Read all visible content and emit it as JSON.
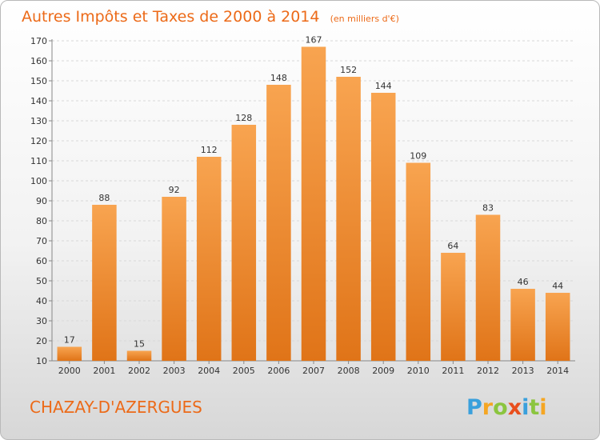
{
  "chart_data": {
    "type": "bar",
    "title": "Autres Impôts et Taxes de 2000 à 2014",
    "subtitle": "(en milliers d'€)",
    "categories": [
      "2000",
      "2001",
      "2002",
      "2003",
      "2004",
      "2005",
      "2006",
      "2007",
      "2008",
      "2009",
      "2010",
      "2011",
      "2012",
      "2013",
      "2014"
    ],
    "values": [
      17,
      88,
      15,
      92,
      112,
      128,
      148,
      167,
      152,
      144,
      109,
      64,
      83,
      46,
      44
    ],
    "value_labels": [
      "17",
      "88",
      "15",
      "92",
      "112",
      "128",
      "148",
      "167",
      "152",
      "144",
      "109",
      "64",
      "83",
      "46",
      "44"
    ],
    "yticks": [
      "10",
      "20",
      "30",
      "40",
      "50",
      "60",
      "70",
      "80",
      "90",
      "100",
      "110",
      "120",
      "130",
      "140",
      "150",
      "160",
      "170"
    ],
    "ylim": [
      10,
      170
    ],
    "grid": true,
    "bar_color": "#f08a2e"
  },
  "footer": {
    "commune": "CHAZAY-D'AZERGUES",
    "brand_letters": [
      "P",
      "r",
      "o",
      "x",
      "i",
      "t",
      "i"
    ],
    "brand_colors": [
      "#3aa0dc",
      "#f5a623",
      "#8bc53f",
      "#e94f1d",
      "#3aa0dc",
      "#8bc53f",
      "#f5a623"
    ]
  }
}
